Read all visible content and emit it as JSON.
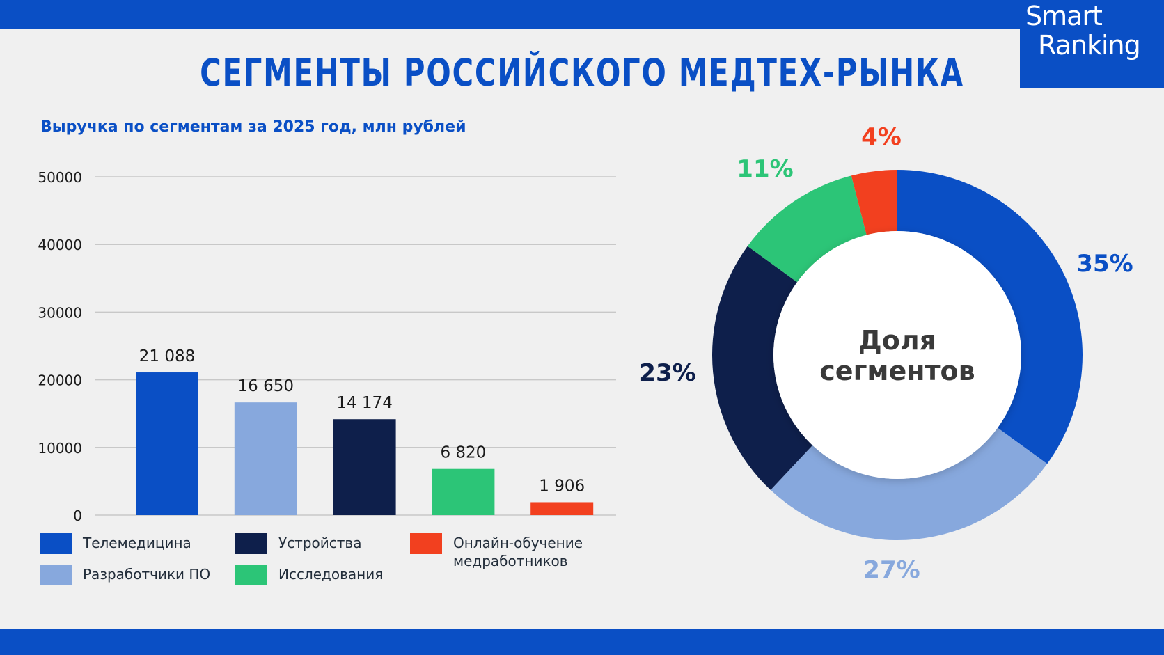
{
  "colors": {
    "band": "#0a4fc5",
    "title": "#0a4fc5",
    "subtitle": "#0a4fc5",
    "telemedicine": "#0a4fc5",
    "software": "#87a8dd",
    "devices": "#0e1f4b",
    "research": "#2cc577",
    "education": "#f2401f",
    "axis_text": "#1b1b1b",
    "grid": "#c8c8c8",
    "center_text": "#3a3a3a"
  },
  "logo": {
    "line1": "Smart",
    "line2": "Ranking"
  },
  "title": "СЕГМЕНТЫ РОССИЙСКОГО МЕДТЕХ-РЫНКА",
  "subtitle": "Выручка по сегментам за 2025 год, млн рублей",
  "legend": [
    {
      "label": "Телемедицина",
      "color_key": "telemedicine"
    },
    {
      "label": "Разработчики ПО",
      "color_key": "software"
    },
    {
      "label": "Устройства",
      "color_key": "devices"
    },
    {
      "label": "Исследования",
      "color_key": "research"
    },
    {
      "label": "Онлайн-обучение медработников",
      "color_key": "education"
    }
  ],
  "chart_data": [
    {
      "type": "bar",
      "title": "Выручка по сегментам за 2025 год, млн рублей",
      "categories": [
        "Телемедицина",
        "Разработчики ПО",
        "Устройства",
        "Исследования",
        "Онлайн-обучение медработников"
      ],
      "values": [
        21088,
        16650,
        14174,
        6820,
        1906
      ],
      "value_labels": [
        "21 088",
        "16 650",
        "14 174",
        "6 820",
        "1 906"
      ],
      "y_ticks": [
        "0",
        "10000",
        "20000",
        "30000",
        "40000",
        "50000"
      ],
      "ylim": [
        0,
        50000
      ],
      "grid": true,
      "xlabel": "",
      "ylabel": ""
    },
    {
      "type": "pie",
      "donut": true,
      "center_label": "Доля сегментов",
      "categories": [
        "Телемедицина",
        "Разработчики ПО",
        "Устройства",
        "Исследования",
        "Онлайн-обучение медработников"
      ],
      "values": [
        35,
        27,
        23,
        11,
        4
      ],
      "value_labels": [
        "35%",
        "27%",
        "23%",
        "11%",
        "4%"
      ]
    }
  ]
}
